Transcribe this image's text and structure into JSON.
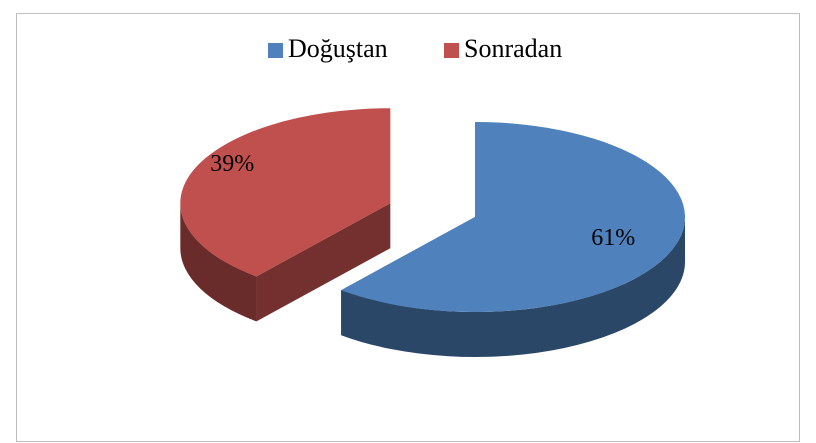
{
  "chart_data": {
    "type": "pie",
    "categories": [
      "Doğuştan",
      "Sonradan"
    ],
    "values": [
      61,
      39
    ],
    "value_labels": [
      "61%",
      "39%"
    ],
    "colors": [
      "#4f81bd",
      "#c0504d"
    ],
    "legend": "top"
  }
}
